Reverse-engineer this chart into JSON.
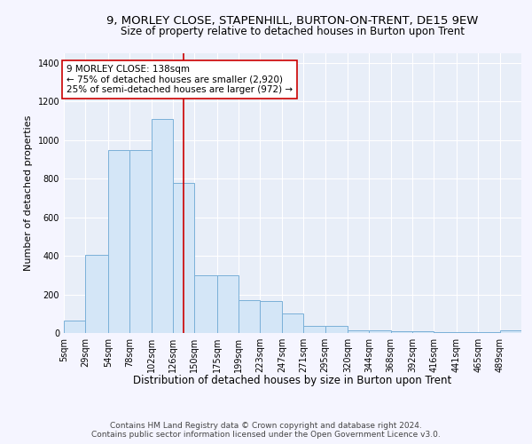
{
  "title": "9, MORLEY CLOSE, STAPENHILL, BURTON-ON-TRENT, DE15 9EW",
  "subtitle": "Size of property relative to detached houses in Burton upon Trent",
  "xlabel": "Distribution of detached houses by size in Burton upon Trent",
  "ylabel": "Number of detached properties",
  "footer1": "Contains HM Land Registry data © Crown copyright and database right 2024.",
  "footer2": "Contains public sector information licensed under the Open Government Licence v3.0.",
  "bin_labels": [
    "5sqm",
    "29sqm",
    "54sqm",
    "78sqm",
    "102sqm",
    "126sqm",
    "150sqm",
    "175sqm",
    "199sqm",
    "223sqm",
    "247sqm",
    "271sqm",
    "295sqm",
    "320sqm",
    "344sqm",
    "368sqm",
    "392sqm",
    "416sqm",
    "441sqm",
    "465sqm",
    "489sqm"
  ],
  "bin_edges": [
    5,
    29,
    54,
    78,
    102,
    126,
    150,
    175,
    199,
    223,
    247,
    271,
    295,
    320,
    344,
    368,
    392,
    416,
    441,
    465,
    489,
    513
  ],
  "bar_heights": [
    65,
    405,
    950,
    950,
    1110,
    780,
    300,
    300,
    170,
    165,
    100,
    35,
    35,
    15,
    15,
    10,
    10,
    5,
    5,
    5,
    15
  ],
  "bar_color": "#d4e6f7",
  "bar_edge_color": "#7ab0d8",
  "bar_linewidth": 0.7,
  "vline_x": 138,
  "vline_color": "#cc0000",
  "vline_linewidth": 1.2,
  "annotation_text": "9 MORLEY CLOSE: 138sqm\n← 75% of detached houses are smaller (2,920)\n25% of semi-detached houses are larger (972) →",
  "annotation_box_color": "#ffffff",
  "annotation_box_edge": "#cc0000",
  "ylim": [
    0,
    1450
  ],
  "yticks": [
    0,
    200,
    400,
    600,
    800,
    1000,
    1200,
    1400
  ],
  "bg_color": "#e8eef8",
  "grid_color": "#ffffff",
  "title_fontsize": 9.5,
  "subtitle_fontsize": 8.5,
  "xlabel_fontsize": 8.5,
  "ylabel_fontsize": 8,
  "tick_fontsize": 7,
  "footer_fontsize": 6.5,
  "annotation_fontsize": 7.5
}
